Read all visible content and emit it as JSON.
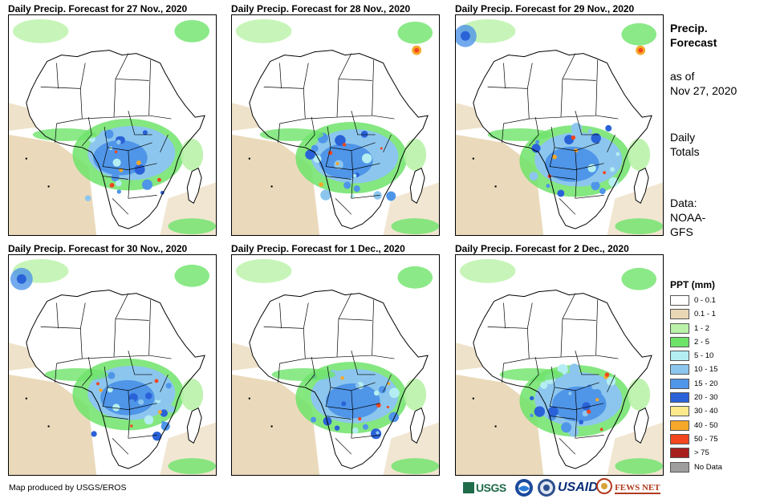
{
  "panels": [
    {
      "title": "Daily Precip. Forecast for 27 Nov., 2020"
    },
    {
      "title": "Daily Precip. Forecast for 28 Nov., 2020"
    },
    {
      "title": "Daily Precip. Forecast for 29 Nov., 2020"
    },
    {
      "title": "Daily Precip. Forecast for 30 Nov., 2020"
    },
    {
      "title": "Daily Precip. Forecast for 1 Dec., 2020"
    },
    {
      "title": "Daily Precip. Forecast for 2 Dec., 2020"
    }
  ],
  "sidebar": {
    "heading_line1": "Precip.",
    "heading_line2": "Forecast",
    "asof_line1": "as of",
    "asof_line2": "Nov 27, 2020",
    "totals_line1": "Daily",
    "totals_line2": "Totals",
    "data_line1": "Data:",
    "data_line2": "NOAA-",
    "data_line3": "GFS"
  },
  "legend": {
    "title": "PPT (mm)",
    "items": [
      {
        "label": "0 - 0.1",
        "color": "#ffffff"
      },
      {
        "label": "0.1 - 1",
        "color": "#e8d6b4"
      },
      {
        "label": "1 - 2",
        "color": "#b9f2a8"
      },
      {
        "label": "2 - 5",
        "color": "#6ee36a"
      },
      {
        "label": "5 - 10",
        "color": "#b4eef2"
      },
      {
        "label": "10 - 15",
        "color": "#8cc6ee"
      },
      {
        "label": "15 - 20",
        "color": "#4f95e8"
      },
      {
        "label": "20 - 30",
        "color": "#2a62d8"
      },
      {
        "label": "30 - 40",
        "color": "#fbe98c"
      },
      {
        "label": "40 - 50",
        "color": "#f6a82a"
      },
      {
        "label": "50 - 75",
        "color": "#f2461e"
      },
      {
        "label": "> 75",
        "color": "#a8201c"
      },
      {
        "label": "No Data",
        "color": "#9e9e9e"
      }
    ]
  },
  "credit": "Map produced by USGS/EROS",
  "logos": {
    "usgs": "USGS",
    "usaid": "USAID",
    "fews": "FEWS NET"
  }
}
